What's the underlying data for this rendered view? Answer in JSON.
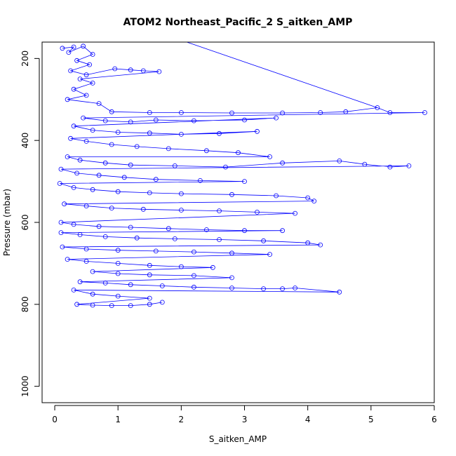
{
  "chart_data": {
    "type": "scatter",
    "title": "ATOM2 Northeast_Pacific_2 S_aitken_AMP",
    "xlabel": "S_aitken_AMP",
    "ylabel": "Pressure (mbar)",
    "xlim": [
      -0.2,
      6.0
    ],
    "ylim": [
      1040,
      160
    ],
    "y_reversed": true,
    "x_ticks": [
      0,
      1,
      2,
      3,
      4,
      5,
      6
    ],
    "y_ticks": [
      200,
      400,
      600,
      800,
      1000
    ],
    "marker": "open-circle",
    "connected": true,
    "color": "#0000ff",
    "grid": false,
    "legend": "none",
    "series": [
      {
        "points": [
          [
            0.12,
            175
          ],
          [
            0.3,
            172
          ],
          [
            0.22,
            185
          ],
          [
            0.45,
            170
          ],
          [
            0.6,
            190
          ],
          [
            0.35,
            205
          ],
          [
            0.55,
            215
          ],
          [
            0.25,
            230
          ],
          [
            0.5,
            240
          ],
          [
            0.95,
            225
          ],
          [
            1.2,
            228
          ],
          [
            1.4,
            230
          ],
          [
            1.65,
            232
          ],
          [
            0.4,
            250
          ],
          [
            0.6,
            260
          ],
          [
            0.3,
            275
          ],
          [
            0.5,
            290
          ],
          [
            0.2,
            300
          ],
          [
            0.7,
            310
          ],
          [
            0.9,
            330
          ],
          [
            1.5,
            332
          ],
          [
            2.0,
            332
          ],
          [
            2.8,
            333
          ],
          [
            3.6,
            333
          ],
          [
            4.2,
            332
          ],
          [
            4.6,
            330
          ],
          [
            5.1,
            320
          ],
          [
            5.3,
            332
          ],
          [
            5.85,
            332
          ],
          [
            0.45,
            345
          ],
          [
            0.8,
            352
          ],
          [
            1.2,
            355
          ],
          [
            1.6,
            350
          ],
          [
            2.2,
            352
          ],
          [
            3.0,
            350
          ],
          [
            3.5,
            345
          ],
          [
            0.3,
            365
          ],
          [
            0.6,
            375
          ],
          [
            1.0,
            380
          ],
          [
            1.5,
            382
          ],
          [
            2.0,
            385
          ],
          [
            2.6,
            383
          ],
          [
            3.2,
            378
          ],
          [
            0.25,
            395
          ],
          [
            0.5,
            402
          ],
          [
            0.9,
            410
          ],
          [
            1.3,
            415
          ],
          [
            1.8,
            420
          ],
          [
            2.4,
            425
          ],
          [
            2.9,
            430
          ],
          [
            3.4,
            440
          ],
          [
            0.2,
            440
          ],
          [
            0.4,
            448
          ],
          [
            0.8,
            455
          ],
          [
            1.2,
            460
          ],
          [
            1.9,
            462
          ],
          [
            2.7,
            465
          ],
          [
            3.6,
            455
          ],
          [
            4.5,
            450
          ],
          [
            4.9,
            458
          ],
          [
            5.3,
            465
          ],
          [
            5.6,
            462
          ],
          [
            0.1,
            470
          ],
          [
            0.35,
            480
          ],
          [
            0.7,
            485
          ],
          [
            1.1,
            490
          ],
          [
            1.6,
            495
          ],
          [
            2.3,
            498
          ],
          [
            3.0,
            500
          ],
          [
            0.08,
            505
          ],
          [
            0.3,
            515
          ],
          [
            0.6,
            520
          ],
          [
            1.0,
            525
          ],
          [
            1.5,
            528
          ],
          [
            2.0,
            530
          ],
          [
            2.8,
            532
          ],
          [
            3.5,
            535
          ],
          [
            4.0,
            540
          ],
          [
            4.1,
            548
          ],
          [
            0.15,
            555
          ],
          [
            0.5,
            560
          ],
          [
            0.9,
            565
          ],
          [
            1.4,
            568
          ],
          [
            2.0,
            570
          ],
          [
            2.6,
            572
          ],
          [
            3.2,
            575
          ],
          [
            3.8,
            578
          ],
          [
            0.1,
            600
          ],
          [
            0.3,
            605
          ],
          [
            0.7,
            610
          ],
          [
            1.2,
            612
          ],
          [
            1.8,
            615
          ],
          [
            2.4,
            618
          ],
          [
            3.0,
            620
          ],
          [
            3.6,
            620
          ],
          [
            0.1,
            625
          ],
          [
            0.4,
            630
          ],
          [
            0.8,
            635
          ],
          [
            1.3,
            638
          ],
          [
            1.9,
            640
          ],
          [
            2.6,
            642
          ],
          [
            3.3,
            645
          ],
          [
            4.0,
            650
          ],
          [
            4.2,
            655
          ],
          [
            0.12,
            660
          ],
          [
            0.5,
            665
          ],
          [
            1.0,
            668
          ],
          [
            1.6,
            670
          ],
          [
            2.2,
            672
          ],
          [
            2.8,
            675
          ],
          [
            3.4,
            678
          ],
          [
            0.2,
            690
          ],
          [
            0.5,
            695
          ],
          [
            1.0,
            700
          ],
          [
            1.5,
            705
          ],
          [
            2.0,
            708
          ],
          [
            2.5,
            710
          ],
          [
            0.6,
            720
          ],
          [
            1.0,
            725
          ],
          [
            1.5,
            728
          ],
          [
            2.2,
            730
          ],
          [
            2.8,
            735
          ],
          [
            0.4,
            745
          ],
          [
            0.8,
            748
          ],
          [
            1.2,
            752
          ],
          [
            1.7,
            755
          ],
          [
            2.2,
            758
          ],
          [
            2.8,
            760
          ],
          [
            3.3,
            762
          ],
          [
            3.6,
            762
          ],
          [
            3.8,
            760
          ],
          [
            4.5,
            770
          ],
          [
            0.3,
            765
          ],
          [
            0.6,
            775
          ],
          [
            1.0,
            780
          ],
          [
            1.5,
            785
          ],
          [
            0.35,
            800
          ],
          [
            0.6,
            802
          ],
          [
            0.9,
            803
          ],
          [
            1.2,
            803
          ],
          [
            1.5,
            800
          ],
          [
            1.7,
            795
          ]
        ]
      }
    ],
    "extra_line": {
      "from": [
        1.9,
        150
      ],
      "to": [
        5.1,
        320
      ]
    }
  }
}
